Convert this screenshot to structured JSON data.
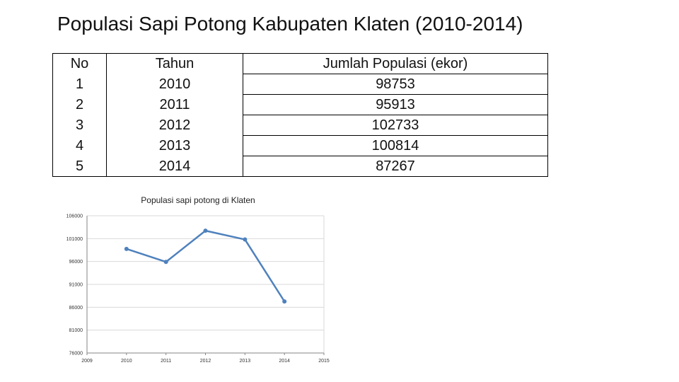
{
  "title": "Populasi Sapi Potong Kabupaten Klaten (2010-2014)",
  "table": {
    "headers": [
      "No",
      "Tahun",
      "Jumlah Populasi (ekor)"
    ],
    "rows": [
      [
        "1",
        "2010",
        "98753"
      ],
      [
        "2",
        "2011",
        "95913"
      ],
      [
        "3",
        "2012",
        "102733"
      ],
      [
        "4",
        "2013",
        "100814"
      ],
      [
        "5",
        "2014",
        "87267"
      ]
    ]
  },
  "chart_data": {
    "type": "line",
    "title": "Populasi sapi potong di Klaten",
    "xlabel": "",
    "ylabel": "",
    "x": [
      2010,
      2011,
      2012,
      2013,
      2014
    ],
    "series": [
      {
        "values": [
          98753,
          95913,
          102733,
          100814,
          87267
        ]
      }
    ],
    "xlim": [
      2009,
      2015
    ],
    "ylim": [
      76000,
      106000
    ],
    "xticks": [
      "2009",
      "2010",
      "2011",
      "2012",
      "2013",
      "2014",
      "2015"
    ],
    "yticks": [
      "76000",
      "81000",
      "86000",
      "91000",
      "96000",
      "101000",
      "106000"
    ],
    "grid": true,
    "line_color": "#4f81bd"
  }
}
